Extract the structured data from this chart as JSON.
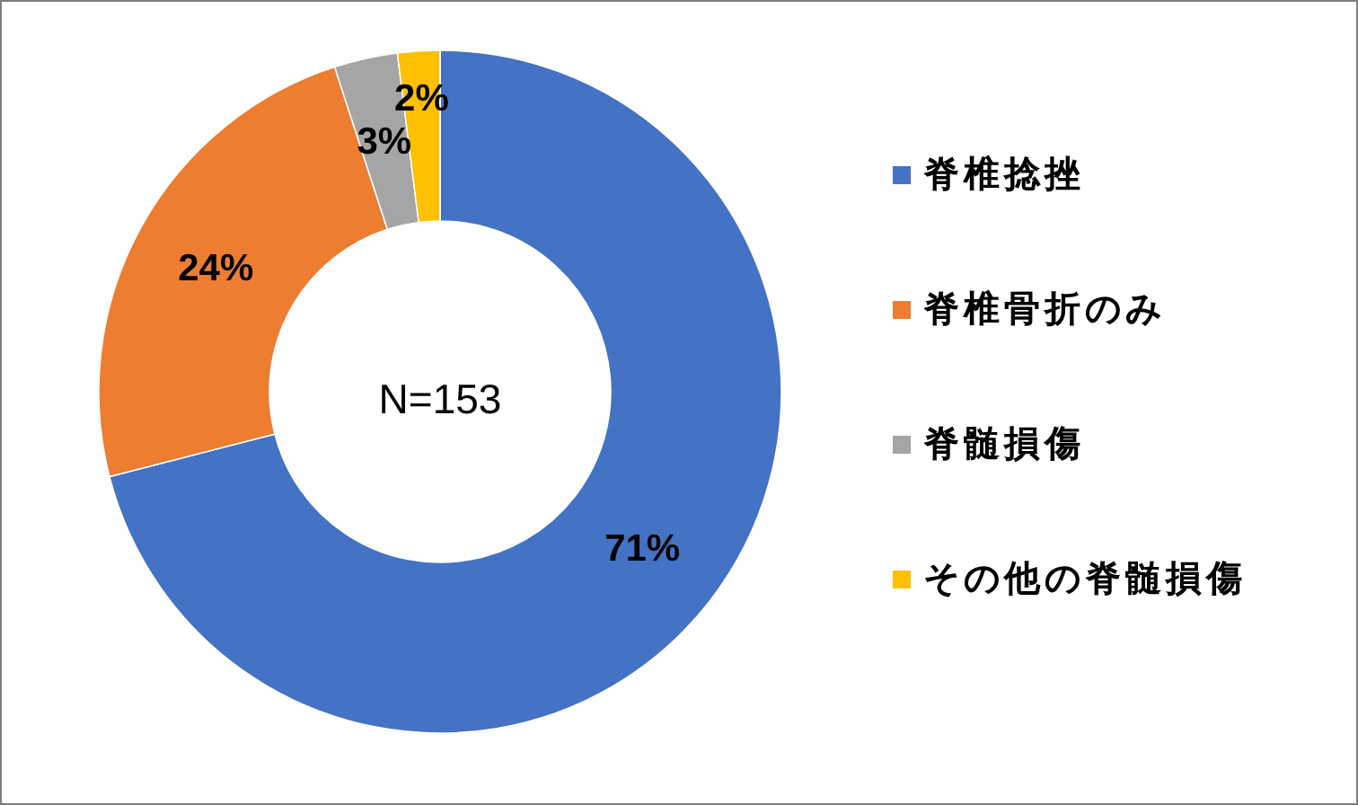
{
  "chart_data": {
    "type": "donut",
    "categories": [
      "脊椎捻挫",
      "脊椎骨折のみ",
      "脊髄損傷",
      "その他の脊髄損傷"
    ],
    "values": [
      71,
      24,
      3,
      2
    ],
    "colors": [
      "#4472c4",
      "#ed7d31",
      "#a5a5a5",
      "#ffc000"
    ],
    "value_labels": [
      "71%",
      "24%",
      "3%",
      "2%"
    ],
    "annotations": [
      "N=153"
    ],
    "legend": "right"
  }
}
